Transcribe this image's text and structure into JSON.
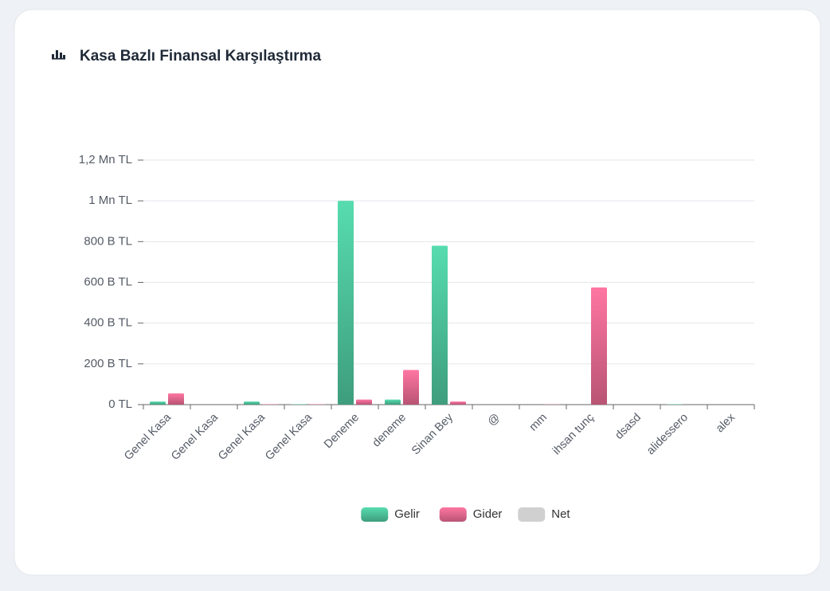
{
  "chart_data": {
    "type": "bar",
    "title": "Kasa Bazlı Finansal Karşılaştırma",
    "categories": [
      "Genel Kasa",
      "Genel Kasa",
      "Genel Kasa",
      "Genel Kasa",
      "Deneme",
      "deneme",
      "Sinan Bey",
      "@",
      "mm",
      "ihsan tunç",
      "dsasd",
      "alidessero",
      "alex"
    ],
    "series": [
      {
        "name": "Gelir",
        "color": "#4cbf98",
        "values": [
          15000,
          0,
          15000,
          2000,
          1000000,
          25000,
          780000,
          0,
          0,
          0,
          0,
          2000,
          0
        ]
      },
      {
        "name": "Gider",
        "color": "#e0678e",
        "values": [
          55000,
          0,
          2000,
          2000,
          25000,
          170000,
          15000,
          0,
          1000,
          575000,
          0,
          0,
          0
        ]
      },
      {
        "name": "Net",
        "color": "#d0d0d0",
        "hidden": true,
        "values": [
          null,
          null,
          null,
          null,
          null,
          null,
          null,
          null,
          null,
          null,
          null,
          null,
          null
        ]
      }
    ],
    "ylim": [
      0,
      1200000
    ],
    "yticks": [
      {
        "value": 0,
        "label": "0 TL"
      },
      {
        "value": 200000,
        "label": "200 B TL"
      },
      {
        "value": 400000,
        "label": "400 B TL"
      },
      {
        "value": 600000,
        "label": "600 B TL"
      },
      {
        "value": 800000,
        "label": "800 B TL"
      },
      {
        "value": 1000000,
        "label": "1 Mn TL"
      },
      {
        "value": 1200000,
        "label": "1,2 Mn TL"
      }
    ],
    "grid": true,
    "legend": "bottom"
  }
}
